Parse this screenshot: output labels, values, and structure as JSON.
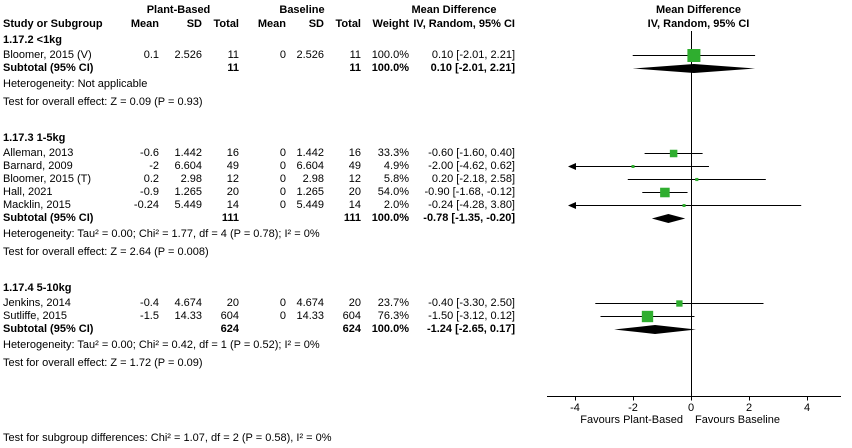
{
  "columns": {
    "study": "Study or Subgroup",
    "mean": "Mean",
    "sd": "SD",
    "total": "Total",
    "weight": "Weight"
  },
  "labels": {
    "subtotal": "Subtotal (95% CI)"
  },
  "colors": {
    "square": "#2fae2f",
    "diamond": "#000000",
    "line": "#000000"
  },
  "chart_data": {
    "type": "forest",
    "group1_label": "Plant-Based",
    "group2_label": "Baseline",
    "effect_measure": "Mean Difference",
    "method": "IV, Random, 95% CI",
    "xlim": [
      -4,
      4
    ],
    "ticks": [
      -4,
      -2,
      0,
      2,
      4
    ],
    "x_left_label": "Favours Plant-Based",
    "x_right_label": "Favours Baseline",
    "groups": [
      {
        "label": "1.17.2 <1kg",
        "studies": [
          {
            "name": "Bloomer, 2015 (V)",
            "mean1": "0.1",
            "sd1": "2.526",
            "total1": "11",
            "mean2": "0",
            "sd2": "2.526",
            "total2": "11",
            "weight": "100.0%",
            "weight_pct": 100.0,
            "ci_text": "0.10 [-2.01, 2.21]",
            "est": 0.1,
            "lo": -2.01,
            "hi": 2.21
          }
        ],
        "subtotal": {
          "total1": "11",
          "total2": "11",
          "weight": "100.0%",
          "ci_text": "0.10 [-2.01, 2.21]",
          "est": 0.1,
          "lo": -2.01,
          "hi": 2.21
        },
        "heterogeneity": "Heterogeneity: Not applicable",
        "overall_test": "Test for overall effect: Z = 0.09 (P = 0.93)"
      },
      {
        "label": "1.17.3 1-5kg",
        "studies": [
          {
            "name": "Alleman, 2013",
            "mean1": "-0.6",
            "sd1": "1.442",
            "total1": "16",
            "mean2": "0",
            "sd2": "1.442",
            "total2": "16",
            "weight": "33.3%",
            "weight_pct": 33.3,
            "ci_text": "-0.60 [-1.60, 0.40]",
            "est": -0.6,
            "lo": -1.6,
            "hi": 0.4
          },
          {
            "name": "Barnard, 2009",
            "mean1": "-2",
            "sd1": "6.604",
            "total1": "49",
            "mean2": "0",
            "sd2": "6.604",
            "total2": "49",
            "weight": "4.9%",
            "weight_pct": 4.9,
            "ci_text": "-2.00 [-4.62, 0.62]",
            "est": -2.0,
            "lo": -4.62,
            "hi": 0.62
          },
          {
            "name": "Bloomer, 2015 (T)",
            "mean1": "0.2",
            "sd1": "2.98",
            "total1": "12",
            "mean2": "0",
            "sd2": "2.98",
            "total2": "12",
            "weight": "5.8%",
            "weight_pct": 5.8,
            "ci_text": "0.20 [-2.18, 2.58]",
            "est": 0.2,
            "lo": -2.18,
            "hi": 2.58
          },
          {
            "name": "Hall, 2021",
            "mean1": "-0.9",
            "sd1": "1.265",
            "total1": "20",
            "mean2": "0",
            "sd2": "1.265",
            "total2": "20",
            "weight": "54.0%",
            "weight_pct": 54.0,
            "ci_text": "-0.90 [-1.68, -0.12]",
            "est": -0.9,
            "lo": -1.68,
            "hi": -0.12
          },
          {
            "name": "Macklin, 2015",
            "mean1": "-0.24",
            "sd1": "5.449",
            "total1": "14",
            "mean2": "0",
            "sd2": "5.449",
            "total2": "14",
            "weight": "2.0%",
            "weight_pct": 2.0,
            "ci_text": "-0.24 [-4.28, 3.80]",
            "est": -0.24,
            "lo": -4.28,
            "hi": 3.8
          }
        ],
        "subtotal": {
          "total1": "111",
          "total2": "111",
          "weight": "100.0%",
          "ci_text": "-0.78 [-1.35, -0.20]",
          "est": -0.78,
          "lo": -1.35,
          "hi": -0.2
        },
        "heterogeneity": "Heterogeneity: Tau² = 0.00; Chi² = 1.77, df = 4 (P = 0.78); I² = 0%",
        "overall_test": "Test for overall effect: Z = 2.64 (P = 0.008)"
      },
      {
        "label": "1.17.4 5-10kg",
        "studies": [
          {
            "name": "Jenkins, 2014",
            "mean1": "-0.4",
            "sd1": "4.674",
            "total1": "20",
            "mean2": "0",
            "sd2": "4.674",
            "total2": "20",
            "weight": "23.7%",
            "weight_pct": 23.7,
            "ci_text": "-0.40 [-3.30, 2.50]",
            "est": -0.4,
            "lo": -3.3,
            "hi": 2.5
          },
          {
            "name": "Sutliffe, 2015",
            "mean1": "-1.5",
            "sd1": "14.33",
            "total1": "604",
            "mean2": "0",
            "sd2": "14.33",
            "total2": "604",
            "weight": "76.3%",
            "weight_pct": 76.3,
            "ci_text": "-1.50 [-3.12, 0.12]",
            "est": -1.5,
            "lo": -3.12,
            "hi": 0.12
          }
        ],
        "subtotal": {
          "total1": "624",
          "total2": "624",
          "weight": "100.0%",
          "ci_text": "-1.24 [-2.65, 0.17]",
          "est": -1.24,
          "lo": -2.65,
          "hi": 0.17
        },
        "heterogeneity": "Heterogeneity: Tau² = 0.00; Chi² = 0.42, df = 1 (P = 0.52); I² = 0%",
        "overall_test": "Test for overall effect: Z = 1.72 (P = 0.09)"
      }
    ],
    "subgroup_test": "Test for subgroup differences: Chi² = 1.07, df = 2 (P = 0.58), I² = 0%"
  }
}
